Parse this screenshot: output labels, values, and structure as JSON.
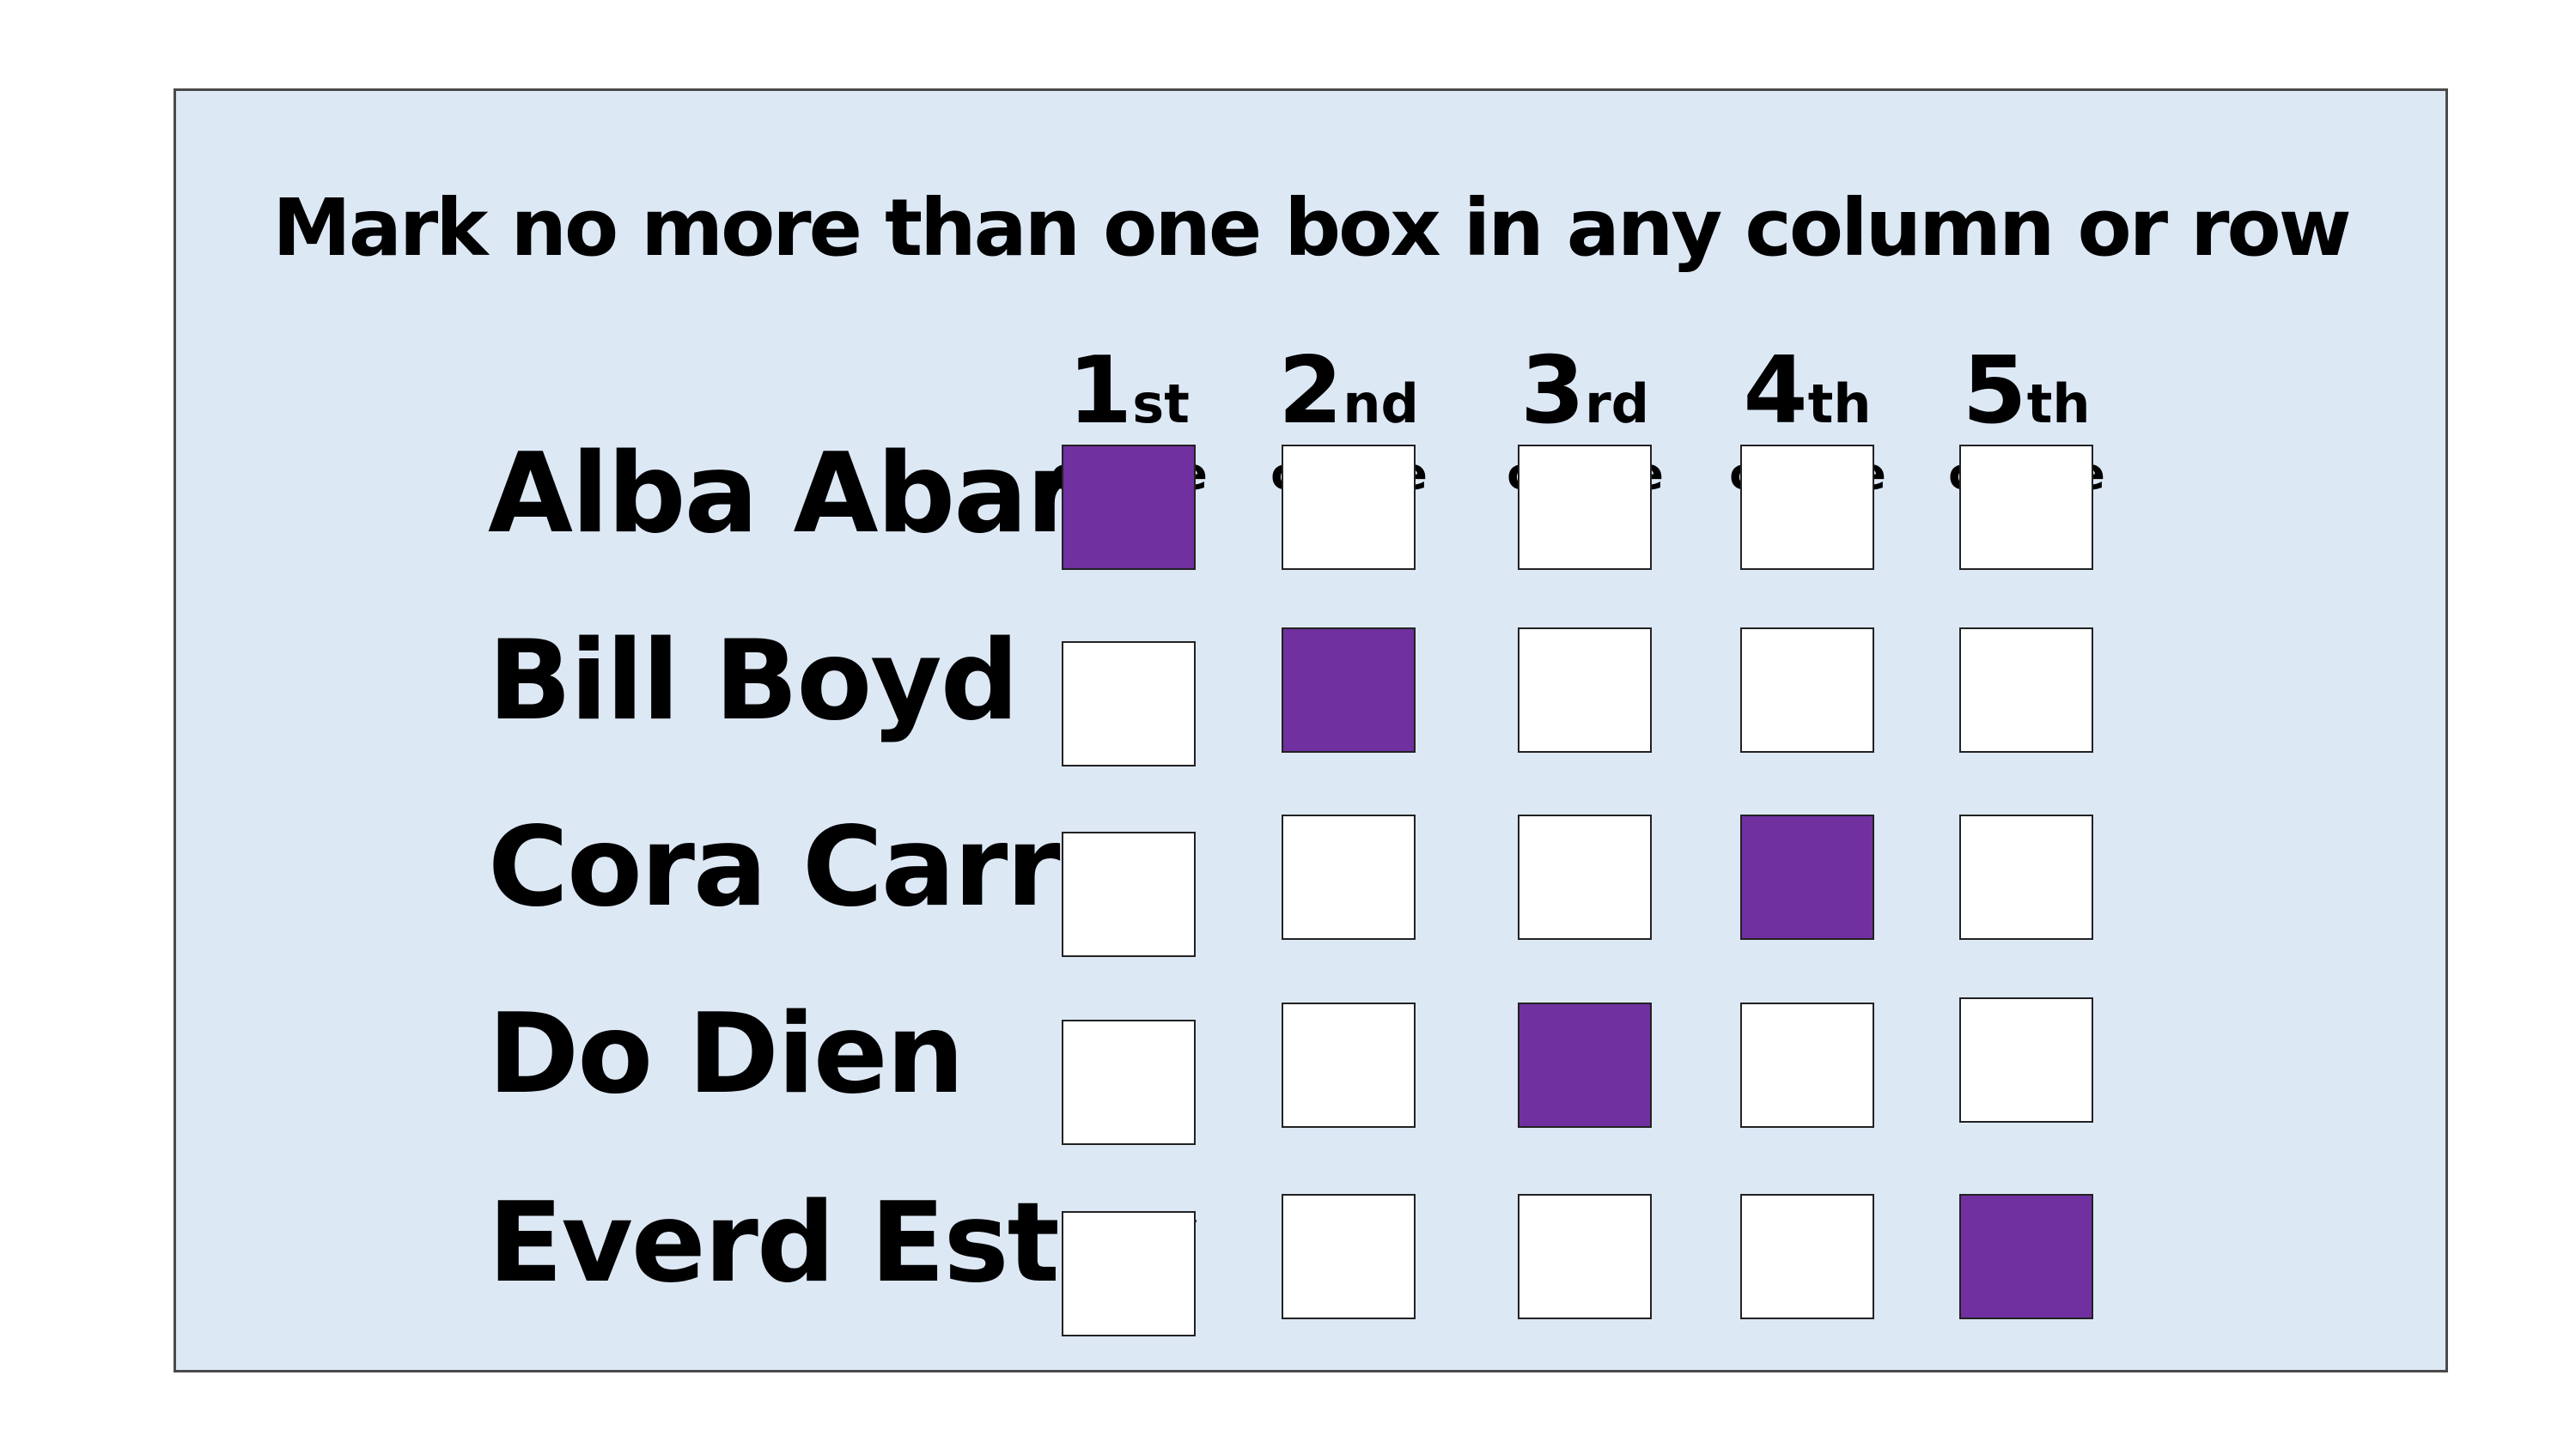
{
  "instruction": "Mark no more than one box in any column or row",
  "columns": [
    {
      "ordinal": "1",
      "suffix": "st",
      "word": "choice"
    },
    {
      "ordinal": "2",
      "suffix": "nd",
      "word": "choice"
    },
    {
      "ordinal": "3",
      "suffix": "rd",
      "word": "choice"
    },
    {
      "ordinal": "4",
      "suffix": "th",
      "word": "choice"
    },
    {
      "ordinal": "5",
      "suffix": "th",
      "word": "choice"
    }
  ],
  "candidates": [
    {
      "name": "Alba Abar",
      "marked_choice": 1
    },
    {
      "name": "Bill Boyd",
      "marked_choice": 2
    },
    {
      "name": "Cora Carr",
      "marked_choice": 4
    },
    {
      "name": "Do Dien",
      "marked_choice": 3
    },
    {
      "name": "Everd Estay",
      "marked_choice": 5
    }
  ],
  "colors": {
    "panel_background": "#dde8f5",
    "marked_fill": "#7030a0",
    "empty_fill": "#ffffff"
  }
}
